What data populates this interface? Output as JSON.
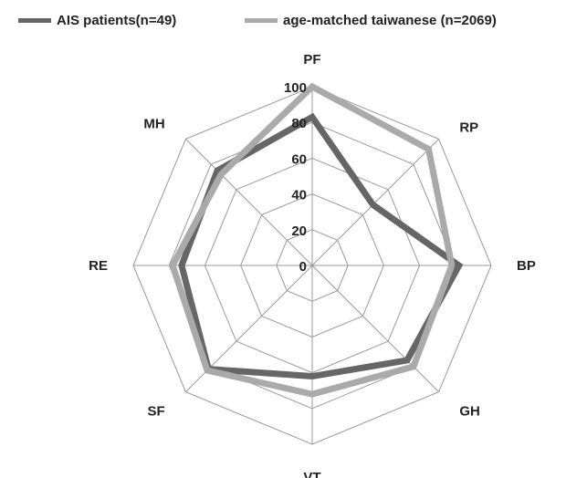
{
  "chart_data": {
    "type": "radar",
    "categories": [
      "PF",
      "RP",
      "BP",
      "GH",
      "VT",
      "SF",
      "RE",
      "MH"
    ],
    "ticks": [
      "0",
      "20",
      "40",
      "60",
      "80",
      "100"
    ],
    "rlim": [
      0,
      100
    ],
    "grid": true,
    "legend_position": "top",
    "series": [
      {
        "name": "AIS patients(n=49)",
        "color": "#666666",
        "values": [
          83,
          48,
          82,
          75,
          62,
          82,
          73,
          75
        ]
      },
      {
        "name": "age-matched taiwanese  (n=2069)",
        "color": "#aaaaaa",
        "values": [
          100,
          92,
          78,
          80,
          72,
          83,
          78,
          72
        ]
      }
    ]
  }
}
